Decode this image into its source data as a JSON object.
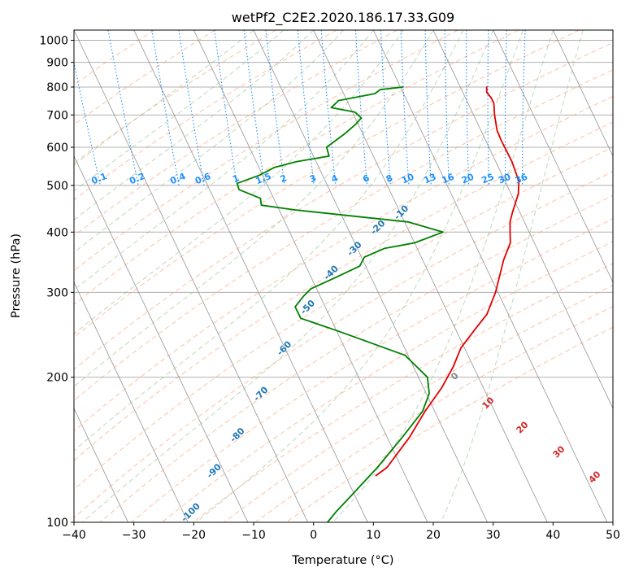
{
  "chart_data": {
    "type": "line",
    "subtype": "skew-t log-p",
    "title": "wetPf2_C2E2.2020.186.17.33.G09",
    "xlabel": "Temperature (°C)",
    "ylabel": "Pressure (hPa)",
    "xlim": [
      -40,
      50
    ],
    "ylim": [
      1050,
      100
    ],
    "y_scale": "log",
    "x_ticks": [
      -40,
      -30,
      -20,
      -10,
      0,
      10,
      20,
      30,
      40,
      50
    ],
    "y_ticks": [
      100,
      200,
      300,
      400,
      500,
      600,
      700,
      800,
      900,
      1000
    ],
    "grid": true,
    "series": [
      {
        "color": "#e00000",
        "data": [
          {
            "p": 800,
            "t": 24.4
          },
          {
            "p": 780,
            "t": 24.0
          },
          {
            "p": 760,
            "t": 24.3
          },
          {
            "p": 740,
            "t": 24.3
          },
          {
            "p": 700,
            "t": 23.5
          },
          {
            "p": 650,
            "t": 22.7
          },
          {
            "p": 620,
            "t": 22.6
          },
          {
            "p": 560,
            "t": 22.7
          },
          {
            "p": 510,
            "t": 22.3
          },
          {
            "p": 480,
            "t": 21.2
          },
          {
            "p": 440,
            "t": 18.8
          },
          {
            "p": 420,
            "t": 17.6
          },
          {
            "p": 400,
            "t": 16.8
          },
          {
            "p": 380,
            "t": 16.0
          },
          {
            "p": 350,
            "t": 13.5
          },
          {
            "p": 300,
            "t": 9.6
          },
          {
            "p": 270,
            "t": 6.4
          },
          {
            "p": 250,
            "t": 3.0
          },
          {
            "p": 230,
            "t": -0.6
          },
          {
            "p": 210,
            "t": -3.4
          },
          {
            "p": 190,
            "t": -7.0
          },
          {
            "p": 170,
            "t": -11.6
          },
          {
            "p": 150,
            "t": -16.3
          },
          {
            "p": 130,
            "t": -22.4
          },
          {
            "p": 125,
            "t": -24.9
          }
        ]
      },
      {
        "color": "#008000",
        "data": [
          {
            "p": 800,
            "t": 10.4
          },
          {
            "p": 790,
            "t": 6.4
          },
          {
            "p": 775,
            "t": 5.2
          },
          {
            "p": 750,
            "t": -1.4
          },
          {
            "p": 725,
            "t": -3.2
          },
          {
            "p": 710,
            "t": 0.4
          },
          {
            "p": 690,
            "t": 1.0
          },
          {
            "p": 670,
            "t": -0.4
          },
          {
            "p": 640,
            "t": -3.0
          },
          {
            "p": 600,
            "t": -7.1
          },
          {
            "p": 575,
            "t": -7.4
          },
          {
            "p": 560,
            "t": -13.3
          },
          {
            "p": 545,
            "t": -17.4
          },
          {
            "p": 525,
            "t": -20.5
          },
          {
            "p": 505,
            "t": -24.9
          },
          {
            "p": 490,
            "t": -25.1
          },
          {
            "p": 470,
            "t": -22.2
          },
          {
            "p": 455,
            "t": -22.6
          },
          {
            "p": 445,
            "t": -17.5
          },
          {
            "p": 420,
            "t": 0.6
          },
          {
            "p": 400,
            "t": 5.6
          },
          {
            "p": 380,
            "t": 0.0
          },
          {
            "p": 370,
            "t": -5.5
          },
          {
            "p": 355,
            "t": -9.5
          },
          {
            "p": 340,
            "t": -11.0
          },
          {
            "p": 320,
            "t": -16.5
          },
          {
            "p": 305,
            "t": -21.0
          },
          {
            "p": 295,
            "t": -22.7
          },
          {
            "p": 280,
            "t": -25.0
          },
          {
            "p": 265,
            "t": -25.0
          },
          {
            "p": 250,
            "t": -20.0
          },
          {
            "p": 235,
            "t": -15.0
          },
          {
            "p": 222,
            "t": -10.5
          },
          {
            "p": 200,
            "t": -8.5
          },
          {
            "p": 185,
            "t": -9.5
          },
          {
            "p": 170,
            "t": -12.0
          },
          {
            "p": 150,
            "t": -17.5
          },
          {
            "p": 130,
            "t": -24.0
          },
          {
            "p": 115,
            "t": -30.0
          },
          {
            "p": 105,
            "t": -34.5
          },
          {
            "p": 100,
            "t": -36.7
          }
        ]
      }
    ],
    "reference_lines": {
      "isotherms": {
        "color": "#808080",
        "from": -140,
        "to": 50,
        "step": 10
      },
      "dry_adiabats": {
        "color": "#ffa07a",
        "labels": [
          {
            "value": "-100",
            "c": -80
          },
          {
            "value": "-90",
            "c": -70
          },
          {
            "value": "-80",
            "c": -60
          },
          {
            "value": "-70",
            "c": -50
          },
          {
            "value": "-60",
            "c": -40
          },
          {
            "value": "-50",
            "c": -30
          },
          {
            "value": "-40",
            "c": -20
          },
          {
            "value": "-30",
            "c": -10
          },
          {
            "value": "-20",
            "c": 0
          },
          {
            "value": "-10",
            "c": 10
          },
          {
            "value": "0",
            "c": 20
          },
          {
            "value": "10",
            "c": 30
          },
          {
            "value": "20",
            "c": 40
          },
          {
            "value": "30",
            "c": 50
          },
          {
            "value": "40",
            "c": 60
          }
        ]
      },
      "moist_adiabats": {
        "color": "#90c090"
      },
      "mixing_ratio": {
        "color": "#1e90ff",
        "labels": [
          "0.1",
          "0.2",
          "0.4",
          "0.6",
          "1",
          "1.5",
          "2",
          "3",
          "4",
          "6",
          "8",
          "10",
          "13",
          "16",
          "20",
          "25",
          "30",
          "36"
        ]
      }
    }
  }
}
